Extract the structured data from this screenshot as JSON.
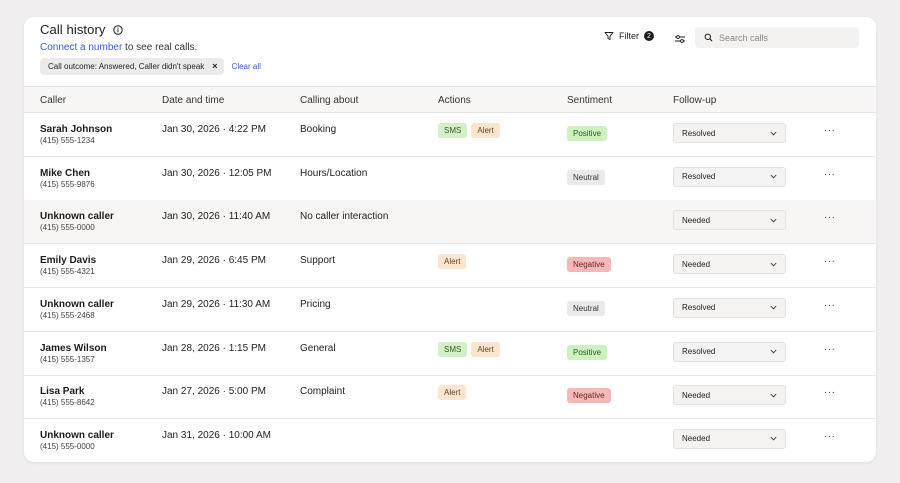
{
  "header": {
    "title": "Call history",
    "subtitle_link": "Connect a number",
    "subtitle_rest": " to see real calls.",
    "filter_chip": "Call outcome: Answered, Caller didn't speak",
    "chip_close": "×",
    "clear_all": "Clear all",
    "filter_label": "Filter",
    "filter_count": "2",
    "search_placeholder": "Search calls"
  },
  "columns": [
    "Caller",
    "Date and time",
    "Calling about",
    "Actions",
    "Sentiment",
    "Follow-up"
  ],
  "rows": [
    {
      "name": "Sarah Johnson",
      "phone": "(415) 555-1234",
      "date": "Jan 30, 2026 · 4:22 PM",
      "about": "Booking",
      "actions": [
        "SMS",
        "Alert"
      ],
      "sentiment": "Positive",
      "followup": "Resolved",
      "more": "···"
    },
    {
      "name": "Mike Chen",
      "phone": "(415) 555-9876",
      "date": "Jan 30, 2026 · 12:05 PM",
      "about": "Hours/Location",
      "actions": [],
      "sentiment": "Neutral",
      "followup": "Resolved",
      "more": "···"
    },
    {
      "name": "Unknown caller",
      "phone": "(415) 555-0000",
      "date": "Jan 30, 2026 · 11:40 AM",
      "about": "No caller interaction",
      "actions": [],
      "sentiment": "",
      "followup": "Needed",
      "more": "···"
    },
    {
      "name": "Emily Davis",
      "phone": "(415) 555-4321",
      "date": "Jan 29, 2026 · 6:45 PM",
      "about": "Support",
      "actions": [
        "Alert"
      ],
      "sentiment": "Negative",
      "followup": "Needed",
      "more": "···"
    },
    {
      "name": "Unknown caller",
      "phone": "(415) 555-2468",
      "date": "Jan 29, 2026 · 11:30 AM",
      "about": "Pricing",
      "actions": [],
      "sentiment": "Neutral",
      "followup": "Resolved",
      "more": "···"
    },
    {
      "name": "James Wilson",
      "phone": "(415) 555-1357",
      "date": "Jan 28, 2026 · 1:15 PM",
      "about": "General",
      "actions": [
        "SMS",
        "Alert"
      ],
      "sentiment": "Positive",
      "followup": "Resolved",
      "more": "···"
    },
    {
      "name": "Lisa Park",
      "phone": "(415) 555-8642",
      "date": "Jan 27, 2026 · 5:00 PM",
      "about": "Complaint",
      "actions": [
        "Alert"
      ],
      "sentiment": "Negative",
      "followup": "Needed",
      "more": "···"
    },
    {
      "name": "Unknown caller",
      "phone": "(415) 555-0000",
      "date": "Jan 31, 2026 · 10:00 AM",
      "about": "",
      "actions": [],
      "sentiment": "",
      "followup": "Needed",
      "more": "···"
    }
  ],
  "colors": {
    "link": "#3b5bdb",
    "sms": "#d5f0c8",
    "alert": "#fbe5cf",
    "positive": "#cdf2bf",
    "neutral": "#ebeae9",
    "negative": "#f5b8b8"
  },
  "icons": {
    "info": "info-icon",
    "filter": "filter-icon",
    "settings": "sliders-icon",
    "search": "search-icon",
    "chevron": "chevron-down-icon",
    "more": "more-icon"
  }
}
